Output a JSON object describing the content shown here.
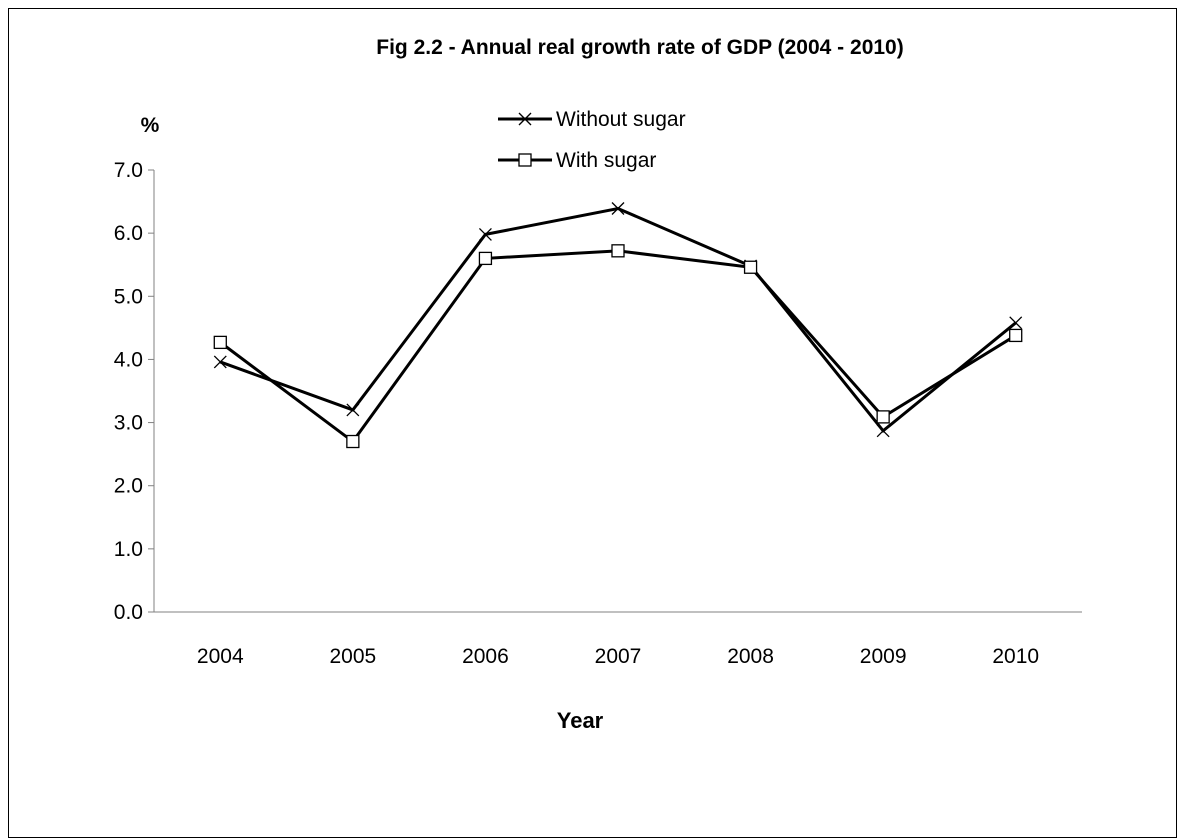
{
  "chart_data": {
    "type": "line",
    "title": "Fig 2.2 - Annual real growth rate of GDP (2004 - 2010)",
    "xlabel": "Year",
    "ylabel": "%",
    "categories": [
      "2004",
      "2005",
      "2006",
      "2007",
      "2008",
      "2009",
      "2010"
    ],
    "ylim": [
      0,
      7
    ],
    "yticks": [
      "0.0",
      "1.0",
      "2.0",
      "3.0",
      "4.0",
      "5.0",
      "6.0",
      "7.0"
    ],
    "grid": false,
    "legend_position": "top-center",
    "series": [
      {
        "name": "Without sugar",
        "marker": "x",
        "color": "#000000",
        "values": [
          3.96,
          3.2,
          5.98,
          6.39,
          5.48,
          2.87,
          4.58
        ]
      },
      {
        "name": "With sugar",
        "marker": "square",
        "color": "#000000",
        "values": [
          4.27,
          2.7,
          5.6,
          5.72,
          5.46,
          3.09,
          4.38
        ]
      }
    ]
  }
}
